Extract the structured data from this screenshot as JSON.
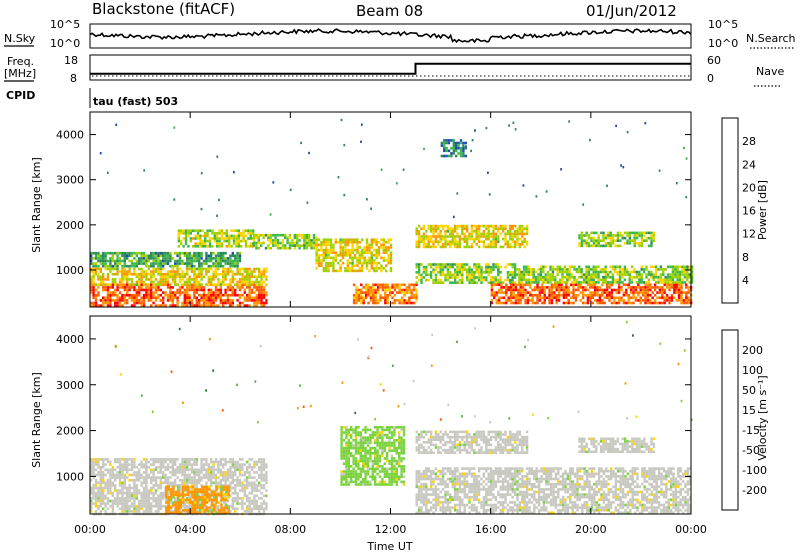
{
  "header": {
    "station": "Blackstone (fitACF)",
    "beam": "Beam 08",
    "date": "01/Jun/2012"
  },
  "noise_panel": {
    "left_label": "N.Sky",
    "left_ticks": [
      "10^5",
      "10^0"
    ],
    "right_label": "N.Search",
    "right_ticks": [
      "10^5",
      "10^0"
    ]
  },
  "freq_panel": {
    "left_label_1": "Freq.",
    "left_label_2": "[MHz]",
    "left_ticks": [
      "18",
      "8"
    ],
    "right_label": "Nave",
    "right_ticks": [
      "60",
      "0"
    ]
  },
  "cpid": {
    "label": "CPID",
    "mode": "tau (fast) 503"
  },
  "power_panel": {
    "ylabel": "Slant Range [km]",
    "yticks": [
      "4000",
      "3000",
      "2000",
      "1000"
    ],
    "colorbar_label": "Power [dB]",
    "colorbar_ticks": [
      "28",
      "24",
      "20",
      "16",
      "12",
      "8",
      "4"
    ],
    "colorbar_colors": [
      "#ff0000",
      "#ff5a00",
      "#ff9600",
      "#ffd400",
      "#a0d000",
      "#3cb84a",
      "#2f8a5a",
      "#1e50b4",
      "#0000ff"
    ]
  },
  "velocity_panel": {
    "ylabel": "Slant Range [km]",
    "yticks": [
      "4000",
      "3000",
      "2000",
      "1000"
    ],
    "colorbar_label": "Velocity [m s⁻¹]",
    "colorbar_ticks": [
      "200",
      "100",
      "50",
      "15",
      "-15",
      "-50",
      "-100",
      "-200"
    ],
    "colorbar_colors": [
      "#1e3cb4",
      "#1e7a3c",
      "#50b43c",
      "#7ad23c",
      "#c8c8c0",
      "#ffd400",
      "#ff9600",
      "#ff5a00",
      "#ff0000"
    ]
  },
  "x_axis": {
    "ticks": [
      "00:00",
      "04:00",
      "08:00",
      "12:00",
      "16:00",
      "20:00",
      "00:00"
    ],
    "label": "Time UT"
  },
  "chart_data": {
    "type": "heatmap",
    "title": "Blackstone (fitACF)  Beam 08  01/Jun/2012",
    "xlabel": "Time UT",
    "ylabel": "Slant Range [km]",
    "x_range_hours": [
      0,
      24
    ],
    "y_range_km": [
      180,
      4500
    ],
    "power_range_db": [
      0,
      30
    ],
    "velocity_range_ms": [
      -200,
      200
    ],
    "frequency_mhz": [
      {
        "t_start": 0,
        "t_end": 13,
        "value": 10.5
      },
      {
        "t_start": 13,
        "t_end": 24,
        "value": 14.5
      }
    ],
    "power_regions": [
      {
        "t0": 0.0,
        "t1": 7.0,
        "r0": 200,
        "r1": 700,
        "power_db": 26
      },
      {
        "t0": 0.0,
        "t1": 7.0,
        "r0": 700,
        "r1": 1050,
        "power_db": 18
      },
      {
        "t0": 0.0,
        "t1": 6.0,
        "r0": 1100,
        "r1": 1400,
        "power_db": 10
      },
      {
        "t0": 3.5,
        "t1": 6.5,
        "r0": 1500,
        "r1": 1900,
        "power_db": 16
      },
      {
        "t0": 6.5,
        "t1": 9.0,
        "r0": 1500,
        "r1": 1800,
        "power_db": 14
      },
      {
        "t0": 9.0,
        "t1": 12.0,
        "r0": 1000,
        "r1": 1700,
        "power_db": 18
      },
      {
        "t0": 10.5,
        "t1": 13.0,
        "r0": 250,
        "r1": 700,
        "power_db": 24
      },
      {
        "t0": 13.0,
        "t1": 17.5,
        "r0": 1500,
        "r1": 2000,
        "power_db": 18
      },
      {
        "t0": 13.0,
        "t1": 17.0,
        "r0": 700,
        "r1": 1150,
        "power_db": 14
      },
      {
        "t0": 16.0,
        "t1": 24.0,
        "r0": 250,
        "r1": 700,
        "power_db": 26
      },
      {
        "t0": 17.0,
        "t1": 24.0,
        "r0": 700,
        "r1": 1100,
        "power_db": 14
      },
      {
        "t0": 19.5,
        "t1": 22.5,
        "r0": 1550,
        "r1": 1850,
        "power_db": 14
      },
      {
        "t0": 14.0,
        "t1": 15.0,
        "r0": 3500,
        "r1": 3900,
        "power_db": 8
      }
    ],
    "velocity_regions": [
      {
        "t0": 0.0,
        "t1": 7.0,
        "r0": 200,
        "r1": 1400,
        "velocity_ms": 0
      },
      {
        "t0": 3.0,
        "t1": 5.5,
        "r0": 200,
        "r1": 800,
        "velocity_ms": -80
      },
      {
        "t0": 10.0,
        "t1": 12.5,
        "r0": 800,
        "r1": 2100,
        "velocity_ms": 45
      },
      {
        "t0": 13.0,
        "t1": 24.0,
        "r0": 200,
        "r1": 1200,
        "velocity_ms": 0
      },
      {
        "t0": 13.0,
        "t1": 17.5,
        "r0": 1500,
        "r1": 2000,
        "velocity_ms": 0
      },
      {
        "t0": 19.5,
        "t1": 22.5,
        "r0": 1550,
        "r1": 1850,
        "velocity_ms": 0
      }
    ]
  }
}
